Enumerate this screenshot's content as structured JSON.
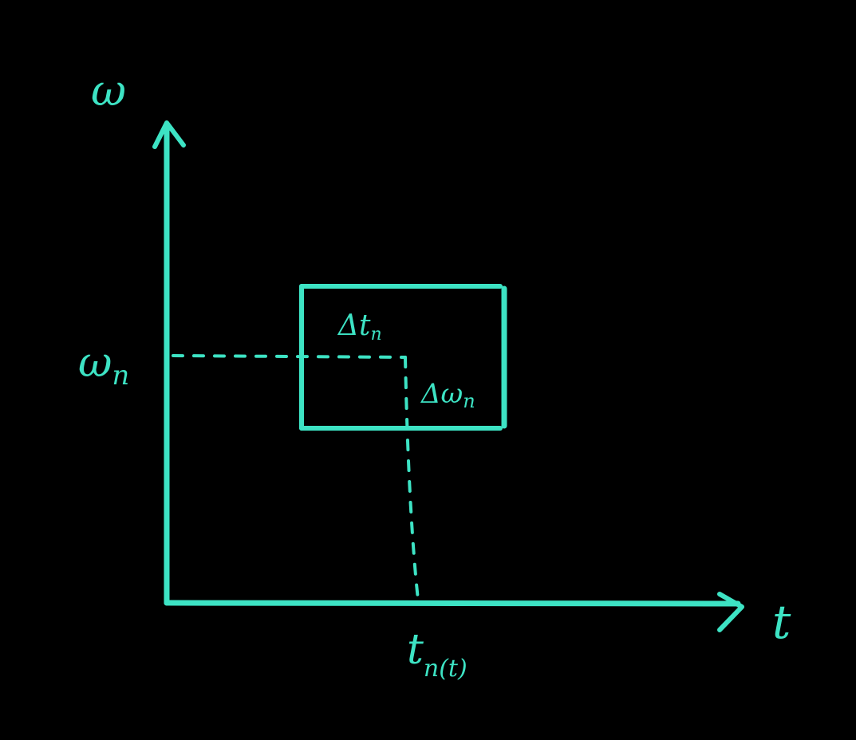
{
  "colors": {
    "background": "#000000",
    "ink": "#3de3c4"
  },
  "axes": {
    "y_label": "ω",
    "x_label": "t"
  },
  "annotations": {
    "omega_n": {
      "base": "ω",
      "sub": "n"
    },
    "t_n": {
      "base": "t",
      "sub": "n(t)"
    },
    "delta_t": {
      "base": "Δt",
      "sub": "n"
    },
    "delta_omega": {
      "base": "Δω",
      "sub": "n"
    }
  }
}
